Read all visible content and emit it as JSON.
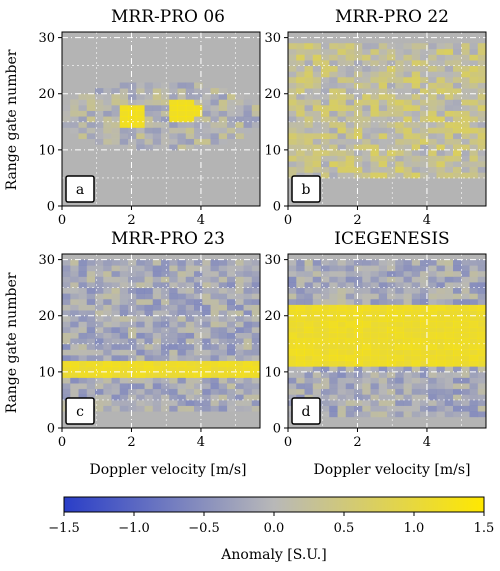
{
  "chart_data": [
    {
      "type": "heatmap",
      "title": "MRR-PRO 06",
      "letter": "a",
      "xlabel": "",
      "ylabel": "Range gate number",
      "xlim": [
        0,
        5.7
      ],
      "ylim": [
        0,
        31
      ],
      "xticks": [
        0,
        2,
        4
      ],
      "yticks": [
        0,
        10,
        20,
        30
      ],
      "grid": true,
      "shape": "ellipse",
      "coverage": {
        "x": [
          0,
          5.7
        ],
        "y": [
          10,
          22
        ]
      },
      "hotspots": [
        {
          "x": 2.0,
          "y": 16,
          "value": 1.5
        },
        {
          "x": 3.5,
          "y": 17,
          "value": 1.5
        }
      ],
      "background_anomaly": 0.0
    },
    {
      "type": "heatmap",
      "title": "MRR-PRO 22",
      "letter": "b",
      "xlabel": "",
      "ylabel": "",
      "xlim": [
        0,
        5.7
      ],
      "ylim": [
        0,
        31
      ],
      "xticks": [
        0,
        2,
        4
      ],
      "yticks": [
        0,
        10,
        20,
        30
      ],
      "grid": true,
      "coverage": {
        "x": [
          0,
          5.7
        ],
        "y": [
          5,
          29
        ]
      },
      "pattern": "mixed anomaly 0.3 to 0.9",
      "background_anomaly": 0.0
    },
    {
      "type": "heatmap",
      "title": "MRR-PRO 23",
      "letter": "c",
      "xlabel": "Doppler velocity [m/s]",
      "ylabel": "Range gate number",
      "xlim": [
        0,
        5.7
      ],
      "ylim": [
        0,
        31
      ],
      "xticks": [
        0,
        2,
        4
      ],
      "yticks": [
        0,
        10,
        20,
        30
      ],
      "grid": true,
      "coverage": {
        "x": [
          0,
          5.7
        ],
        "y": [
          3,
          30
        ]
      },
      "bands": [
        {
          "y": [
            9,
            12
          ],
          "value": 1.5
        }
      ],
      "background_anomaly": -0.2
    },
    {
      "type": "heatmap",
      "title": "ICEGENESIS",
      "letter": "d",
      "xlabel": "Doppler velocity [m/s]",
      "ylabel": "",
      "xlim": [
        0,
        5.7
      ],
      "ylim": [
        0,
        31
      ],
      "xticks": [
        0,
        2,
        4
      ],
      "yticks": [
        0,
        10,
        20,
        30
      ],
      "grid": true,
      "coverage": {
        "x": [
          0,
          5.7
        ],
        "y": [
          2,
          30
        ]
      },
      "bands": [
        {
          "y": [
            11,
            22
          ],
          "value": 1.5
        }
      ],
      "background_anomaly": -0.2
    }
  ],
  "colorbar": {
    "label": "Anomaly [S.U.]",
    "min": -1.5,
    "max": 1.5,
    "ticks": [
      "−1.5",
      "−1.0",
      "−0.5",
      "0.0",
      "0.5",
      "1.0",
      "1.5"
    ],
    "tick_values": [
      -1.5,
      -1.0,
      -0.5,
      0.0,
      0.5,
      1.0,
      1.5
    ],
    "colors": [
      "#2a3ec8",
      "#b8b8b8",
      "#ffe800"
    ]
  },
  "colors": {
    "background": "#b4b4b4",
    "low": "#2a3ec8",
    "mid": "#b8b8b8",
    "high": "#ffe800",
    "grid": "#ffffff"
  }
}
